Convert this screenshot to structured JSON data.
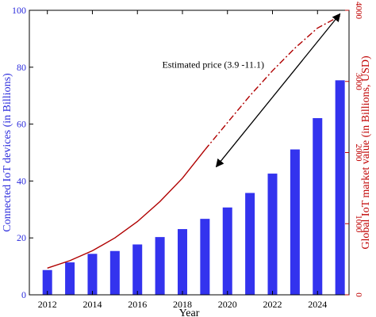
{
  "chart_data": {
    "type": "bar",
    "xlabel": "Year",
    "ylabel_left": "Connected IoT devices (in Billions)",
    "ylabel_right": "Global IoT market value (in Billions, USD)",
    "x_tick_labels": [
      "2012",
      "2014",
      "2016",
      "2018",
      "2020",
      "2022",
      "2024"
    ],
    "x_ticks": [
      2012,
      2014,
      2016,
      2018,
      2020,
      2022,
      2024
    ],
    "y_left_ticks": [
      0,
      20,
      40,
      60,
      80,
      100
    ],
    "y_right_ticks": [
      0,
      1000,
      2000,
      3000,
      4000
    ],
    "ylim_left": [
      0,
      100
    ],
    "ylim_right": [
      0,
      4000
    ],
    "xlim": [
      2011.2,
      2025.4
    ],
    "series": [
      {
        "kind": "bar",
        "axis": "left",
        "color": "#3333ee",
        "x": [
          2012,
          2013,
          2014,
          2015,
          2016,
          2017,
          2018,
          2019,
          2020,
          2021,
          2022,
          2023,
          2024,
          2025
        ],
        "values": [
          8.7,
          11.4,
          14.4,
          15.4,
          17.7,
          20.3,
          23.1,
          26.7,
          30.7,
          35.8,
          42.6,
          51.1,
          62.1,
          75.4
        ]
      },
      {
        "kind": "line",
        "style": "solid",
        "axis": "right",
        "color": "#b00000",
        "x": [
          2012,
          2013,
          2014,
          2015,
          2016,
          2017,
          2018,
          2019
        ],
        "values": [
          375,
          480,
          620,
          800,
          1030,
          1310,
          1640,
          2040
        ]
      },
      {
        "kind": "line",
        "style": "dashdot",
        "axis": "right",
        "color": "#b00000",
        "x": [
          2019,
          2020,
          2021,
          2022,
          2023,
          2024,
          2025
        ],
        "values": [
          2040,
          2420,
          2800,
          3150,
          3470,
          3750,
          3920
        ]
      }
    ],
    "annotation": {
      "text": "Estimated price (3.9 -11.1)",
      "arrow_from": [
        2019.5,
        1800
      ],
      "arrow_to": [
        2025.0,
        3950
      ]
    },
    "grid": false,
    "legend": "none"
  }
}
